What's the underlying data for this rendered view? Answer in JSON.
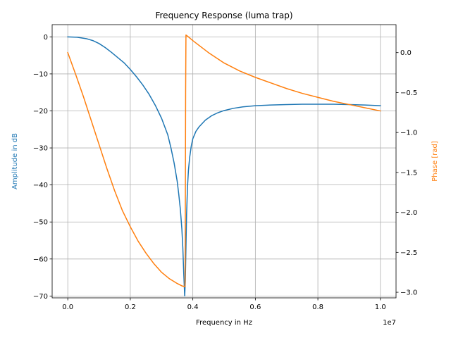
{
  "chart_data": {
    "type": "line",
    "title": "Frequency Response (luma trap)",
    "xlabel": "Frequency in Hz",
    "x_offset_label": "1e7",
    "ylabel_left": "Amplitude in dB",
    "ylabel_right": "Phase [rad]",
    "xlim": [
      -0.05,
      1.05
    ],
    "ylim_left": [
      -70.5,
      3.3
    ],
    "ylim_right": [
      -3.07,
      0.35
    ],
    "x_ticks": [
      0.0,
      0.2,
      0.4,
      0.6,
      0.8,
      1.0
    ],
    "x_tick_labels": [
      "0.0",
      "0.2",
      "0.4",
      "0.6",
      "0.8",
      "1.0"
    ],
    "y_left_ticks": [
      0,
      -10,
      -20,
      -30,
      -40,
      -50,
      -60,
      -70
    ],
    "y_left_tick_labels": [
      "0",
      "−10",
      "−20",
      "−30",
      "−40",
      "−50",
      "−60",
      "−70"
    ],
    "y_right_ticks": [
      0.0,
      -0.5,
      -1.0,
      -1.5,
      -2.0,
      -2.5,
      -3.0
    ],
    "y_right_tick_labels": [
      "0.0",
      "−0.5",
      "−1.0",
      "−1.5",
      "−2.0",
      "−2.5",
      "−3.0"
    ],
    "grid": true,
    "series": [
      {
        "axis": "left",
        "color": "#1f77b4",
        "x": [
          0.0,
          0.03,
          0.06,
          0.08,
          0.1,
          0.12,
          0.14,
          0.16,
          0.18,
          0.2,
          0.22,
          0.24,
          0.26,
          0.28,
          0.3,
          0.32,
          0.33,
          0.34,
          0.35,
          0.355,
          0.36,
          0.365,
          0.368,
          0.371,
          0.374,
          0.376,
          0.378,
          0.38,
          0.383,
          0.386,
          0.39,
          0.395,
          0.4,
          0.41,
          0.42,
          0.44,
          0.46,
          0.48,
          0.5,
          0.53,
          0.56,
          0.6,
          0.65,
          0.7,
          0.75,
          0.8,
          0.85,
          0.9,
          0.95,
          1.0
        ],
        "y": [
          0.0,
          -0.1,
          -0.5,
          -1.0,
          -1.8,
          -2.9,
          -4.2,
          -5.6,
          -7.0,
          -8.8,
          -10.8,
          -13.0,
          -15.5,
          -18.5,
          -22.0,
          -26.5,
          -30.0,
          -34.0,
          -39.0,
          -42.5,
          -46.5,
          -52.0,
          -57.0,
          -64.0,
          -70.0,
          -66.0,
          -57.0,
          -48.0,
          -40.5,
          -36.0,
          -32.5,
          -29.5,
          -27.5,
          -25.5,
          -24.3,
          -22.5,
          -21.3,
          -20.5,
          -19.9,
          -19.3,
          -18.9,
          -18.6,
          -18.4,
          -18.3,
          -18.2,
          -18.2,
          -18.2,
          -18.3,
          -18.4,
          -18.6
        ]
      },
      {
        "axis": "right",
        "color": "#ff7f0e",
        "x": [
          0.0,
          0.025,
          0.05,
          0.075,
          0.1,
          0.125,
          0.15,
          0.175,
          0.2,
          0.225,
          0.25,
          0.275,
          0.3,
          0.325,
          0.35,
          0.365,
          0.375,
          0.376,
          0.377,
          0.378,
          0.385,
          0.4,
          0.45,
          0.5,
          0.55,
          0.6,
          0.65,
          0.7,
          0.75,
          0.8,
          0.85,
          0.9,
          0.95,
          1.0
        ],
        "y": [
          0.0,
          -0.27,
          -0.55,
          -0.85,
          -1.15,
          -1.45,
          -1.73,
          -1.98,
          -2.18,
          -2.36,
          -2.51,
          -2.64,
          -2.75,
          -2.83,
          -2.89,
          -2.92,
          -2.93,
          -2.0,
          -0.5,
          0.22,
          0.2,
          0.15,
          0.0,
          -0.13,
          -0.23,
          -0.31,
          -0.38,
          -0.45,
          -0.51,
          -0.56,
          -0.61,
          -0.65,
          -0.69,
          -0.73
        ]
      }
    ]
  }
}
